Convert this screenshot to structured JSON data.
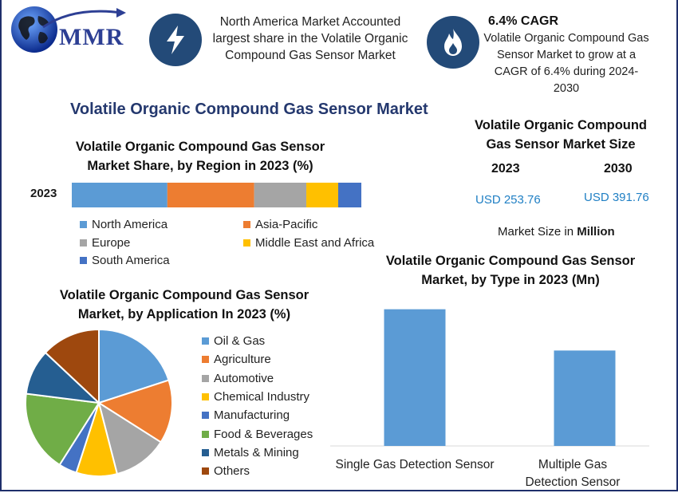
{
  "logo": {
    "text": "MMR"
  },
  "highlights": {
    "north_america": "North America Market Accounted largest share in the Volatile Organic Compound Gas Sensor Market",
    "cagr_title": "6.4% CAGR",
    "cagr_text": "Volatile Organic Compound Gas Sensor Market to grow at a CAGR of 6.4% during 2024-2030"
  },
  "icons": {
    "highlight1": "lightning-bolt-icon",
    "highlight2": "flame-icon"
  },
  "main_title": "Volatile Organic Compound Gas Sensor Market",
  "market_size": {
    "title": "Volatile Organic Compound Gas Sensor Market Size",
    "year1": "2023",
    "year2": "2030",
    "value1": "USD 253.76",
    "value2": "USD 391.76",
    "unit_prefix": "Market Size in",
    "unit": "Million"
  },
  "colors": {
    "blue": "#5b9bd5",
    "orange": "#ed7d31",
    "gray": "#a5a5a5",
    "gold": "#ffc000",
    "dark_blue": "#4472c4",
    "green": "#70ad47",
    "navy": "#255e91",
    "brown": "#9e480e"
  },
  "chart_data": [
    {
      "type": "bar",
      "orientation": "horizontal-stacked",
      "title": "Volatile Organic Compound Gas Sensor Market Share, by Region in 2023 (%)",
      "categories": [
        "2023"
      ],
      "series": [
        {
          "name": "North America",
          "values": [
            33
          ]
        },
        {
          "name": "Asia-Pacific",
          "values": [
            30
          ]
        },
        {
          "name": "Europe",
          "values": [
            18
          ]
        },
        {
          "name": "Middle East and Africa",
          "values": [
            11
          ]
        },
        {
          "name": "South America",
          "values": [
            8
          ]
        }
      ],
      "legend": "bottom"
    },
    {
      "type": "pie",
      "title": "Volatile Organic Compound Gas Sensor Market, by Application In 2023 (%)",
      "labels": [
        "Oil & Gas",
        "Agriculture",
        "Automotive",
        "Chemical Industry",
        "Manufacturing",
        "Food & Beverages",
        "Metals & Mining",
        "Others"
      ],
      "values": [
        20,
        14,
        12,
        9,
        4,
        18,
        10,
        13
      ],
      "legend": "right"
    },
    {
      "type": "bar",
      "title": "Volatile Organic Compound Gas Sensor Market, by Type in 2023 (Mn)",
      "categories": [
        "Single Gas Detection Sensor",
        "Multiple Gas Detection Sensor"
      ],
      "values": [
        149,
        104
      ],
      "ylim": [
        0,
        160
      ],
      "xlabel": "",
      "ylabel": ""
    }
  ]
}
